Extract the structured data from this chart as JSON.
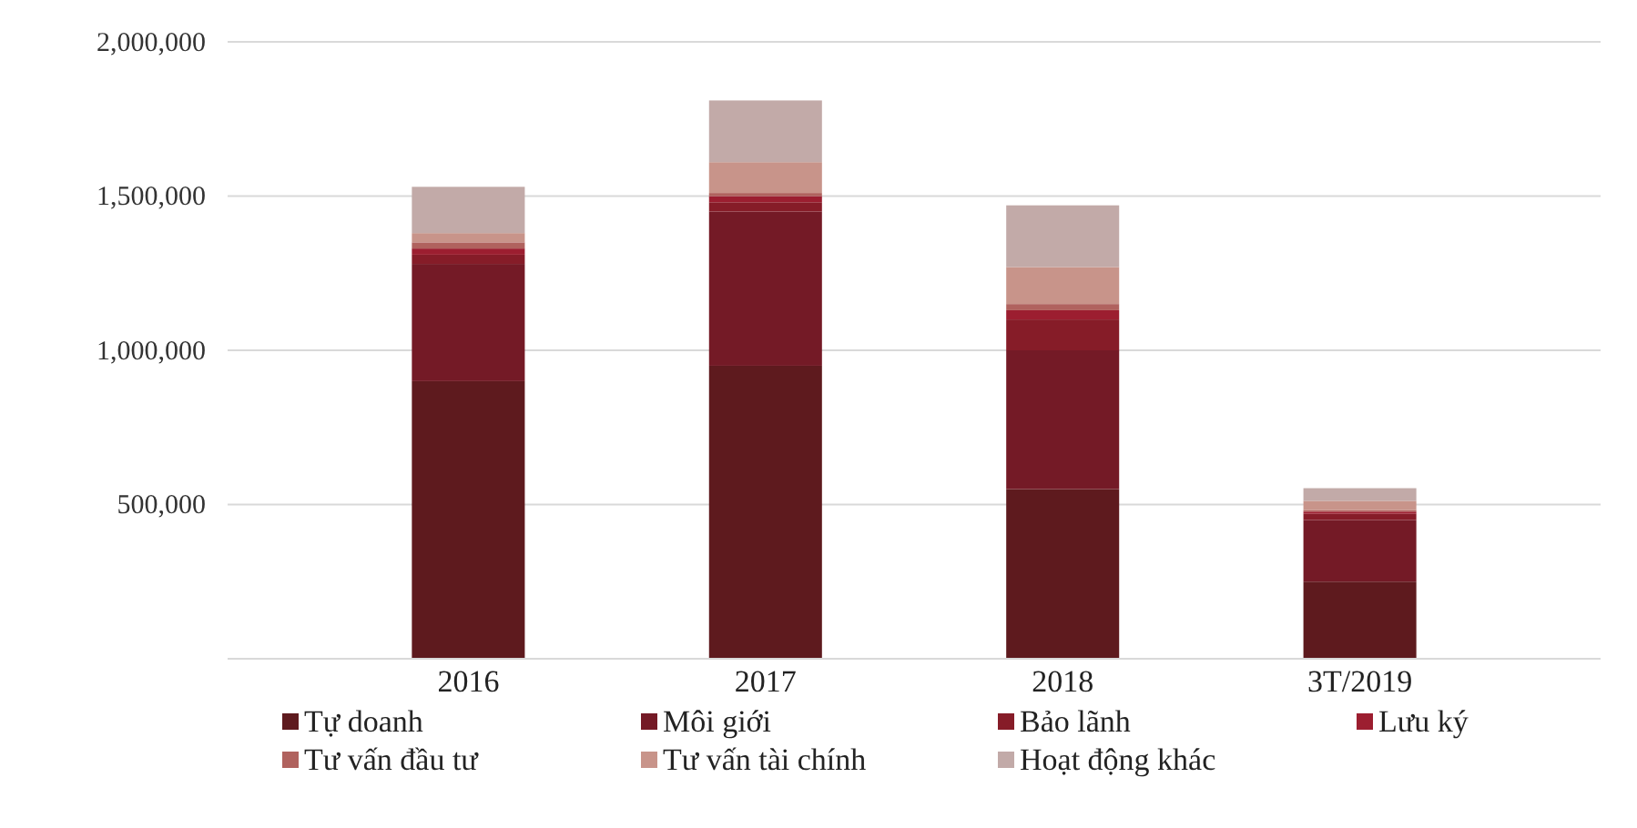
{
  "chart_data": {
    "type": "bar",
    "stacked": true,
    "categories": [
      "2016",
      "2017",
      "2018",
      "3T/2019"
    ],
    "series": [
      {
        "name": "Tự doanh",
        "color": "#5e1a1e",
        "values": [
          900000,
          950000,
          550000,
          250000
        ]
      },
      {
        "name": "Môi giới",
        "color": "#741a26",
        "values": [
          380000,
          500000,
          450000,
          200000
        ]
      },
      {
        "name": "Bảo lãnh",
        "color": "#861c28",
        "values": [
          30000,
          30000,
          100000,
          20000
        ]
      },
      {
        "name": "Lưu ký",
        "color": "#9c1e30",
        "values": [
          20000,
          20000,
          30000,
          7000
        ]
      },
      {
        "name": "Tư vấn đầu tư",
        "color": "#b0625e",
        "values": [
          20000,
          10000,
          20000,
          5000
        ]
      },
      {
        "name": "Tư vấn tài chính",
        "color": "#c8948a",
        "values": [
          30000,
          100000,
          120000,
          30000
        ]
      },
      {
        "name": "Hoạt động khác",
        "color": "#c2aaa8",
        "values": [
          150000,
          200000,
          200000,
          41000
        ]
      }
    ],
    "ylim": [
      0,
      2000000
    ],
    "yticks": [
      {
        "value": 0,
        "label": null
      },
      {
        "value": 500000,
        "label": "500,000"
      },
      {
        "value": 1000000,
        "label": "1,000,000"
      },
      {
        "value": 1500000,
        "label": "1,500,000"
      },
      {
        "value": 2000000,
        "label": "2,000,000"
      }
    ],
    "grid": "y",
    "legend": "bottom"
  }
}
